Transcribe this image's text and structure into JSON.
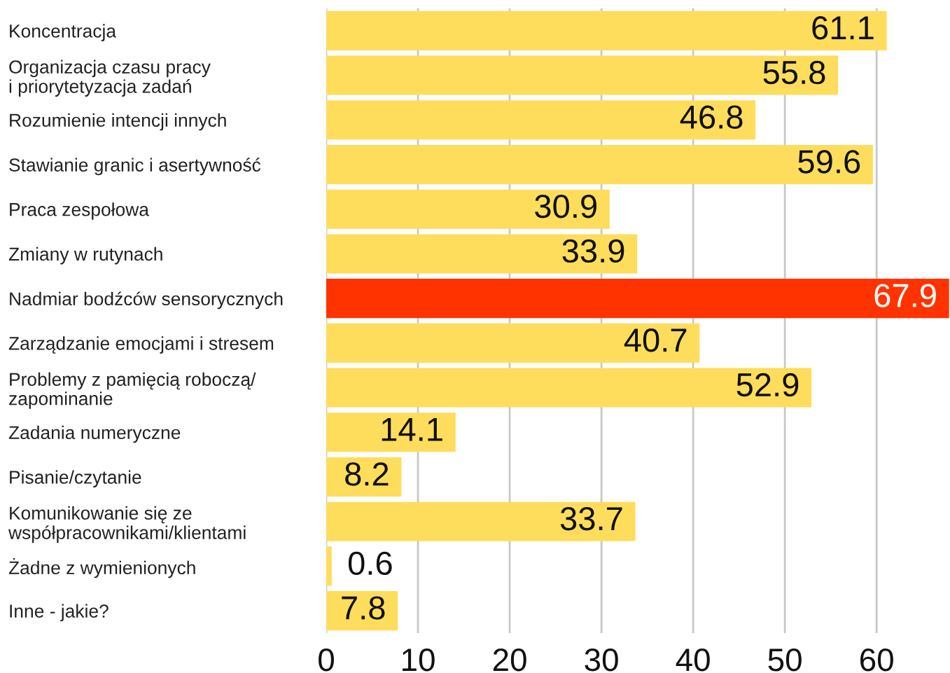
{
  "chart_data": {
    "type": "bar",
    "orientation": "horizontal",
    "categories": [
      "Koncentracja",
      "Organizacja czasu pracy\ni priorytetyzacja zadań",
      "Rozumienie intencji innych",
      "Stawianie granic i asertywność",
      "Praca zespołowa",
      "Zmiany w rutynach",
      "Nadmiar bodźców sensorycznych",
      "Zarządzanie emocjami i stresem",
      "Problemy z pamięcią roboczą/\nzapominanie",
      "Zadania numeryczne",
      "Pisanie/czytanie",
      "Komunikowanie się ze\nwspółpracownikami/klientami",
      "Żadne z wymienionych",
      "Inne - jakie?"
    ],
    "values": [
      61.1,
      55.8,
      46.8,
      59.6,
      30.9,
      33.9,
      67.9,
      40.7,
      52.9,
      14.1,
      8.2,
      33.7,
      0.6,
      7.8
    ],
    "colors": [
      "#fedd5c",
      "#fedd5c",
      "#fedd5c",
      "#fedd5c",
      "#fedd5c",
      "#fedd5c",
      "#ff3300",
      "#fedd5c",
      "#fedd5c",
      "#fedd5c",
      "#fedd5c",
      "#fedd5c",
      "#fedd5c",
      "#fedd5c"
    ],
    "xlim": [
      0,
      68
    ],
    "xticks": [
      0,
      10,
      20,
      30,
      40,
      50,
      60
    ],
    "grid": "x",
    "data_labels": true
  }
}
